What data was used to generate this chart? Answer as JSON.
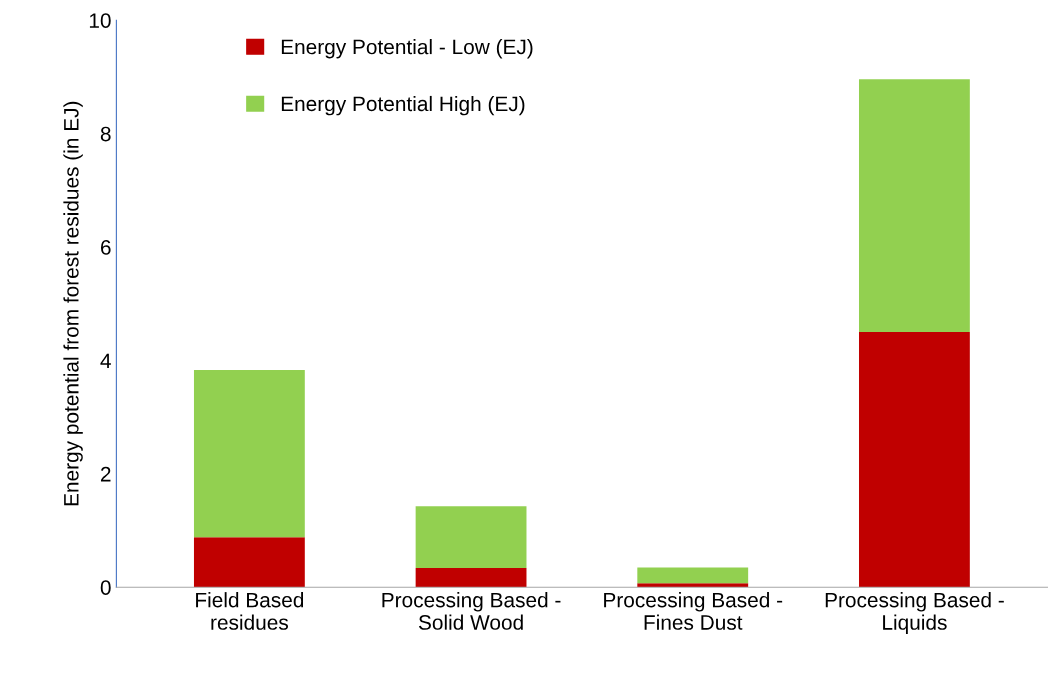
{
  "chart_data": {
    "type": "bar",
    "stacked": true,
    "ylabel": "Energy potential from forest residues (in EJ)",
    "categories": [
      "Field Based\nresidues",
      "Processing Based -\nSolid Wood",
      "Processing Based -\nFines Dust",
      "Processing Based -\nLiquids"
    ],
    "series": [
      {
        "name": "Energy Potential - Low (EJ)",
        "color": "#c00000",
        "values": [
          0.88,
          0.34,
          0.07,
          4.5
        ]
      },
      {
        "name": "Energy Potential High (EJ)",
        "color": "#92d050",
        "values": [
          2.95,
          1.09,
          0.28,
          4.46
        ]
      }
    ],
    "ylim": [
      0,
      10
    ],
    "yticks": [
      0,
      2,
      4,
      6,
      8,
      10
    ],
    "grid": false,
    "legend": "top left"
  }
}
